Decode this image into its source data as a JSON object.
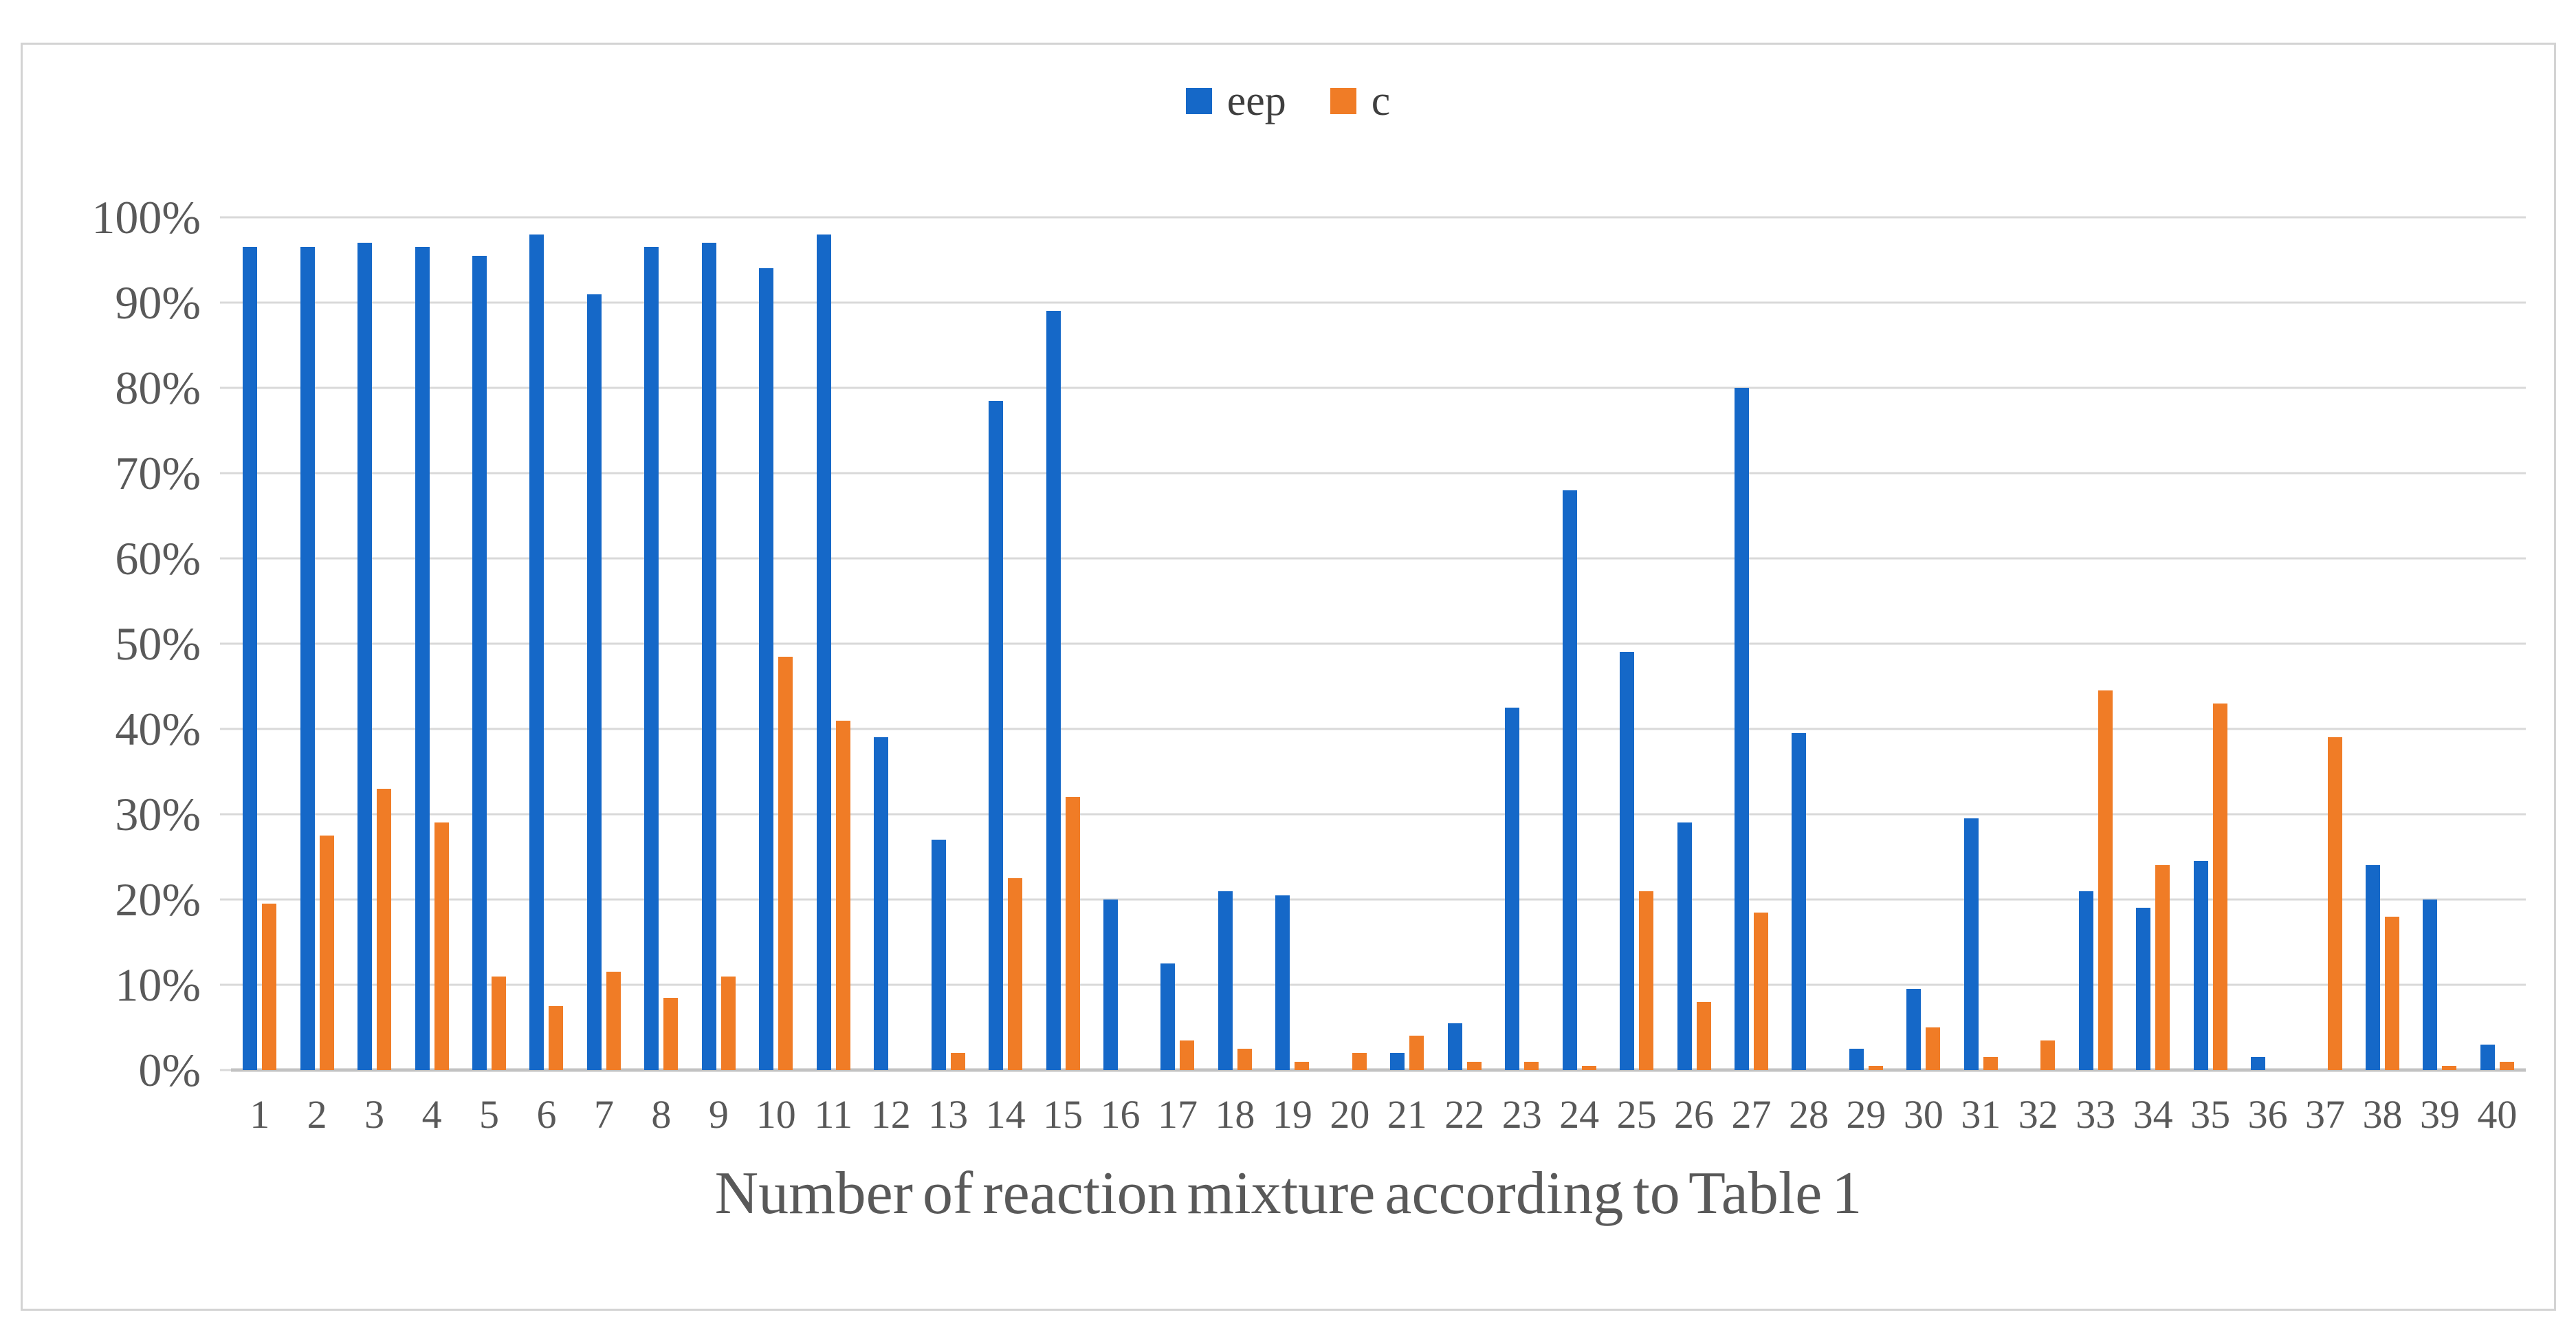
{
  "chart_data": {
    "type": "bar",
    "title": "",
    "xlabel": "Number of reaction mixture according to Table 1",
    "ylabel": "",
    "categories": [
      "1",
      "2",
      "3",
      "4",
      "5",
      "6",
      "7",
      "8",
      "9",
      "10",
      "11",
      "12",
      "13",
      "14",
      "15",
      "16",
      "17",
      "18",
      "19",
      "20",
      "21",
      "22",
      "23",
      "24",
      "25",
      "26",
      "27",
      "28",
      "29",
      "30",
      "31",
      "32",
      "33",
      "34",
      "35",
      "36",
      "37",
      "38",
      "39",
      "40"
    ],
    "series": [
      {
        "name": "eep",
        "color": "#1568c8",
        "values": [
          96.5,
          96.5,
          97,
          96.5,
          95.5,
          98,
          91,
          96.5,
          97,
          94,
          98,
          39,
          27,
          78.5,
          89,
          20,
          12.5,
          21,
          20.5,
          0,
          2,
          5.5,
          42.5,
          68,
          49,
          29,
          80,
          39.5,
          2.5,
          9.5,
          29.5,
          0,
          21,
          19,
          24.5,
          1.5,
          0,
          24,
          20,
          3
        ]
      },
      {
        "name": "c",
        "color": "#f07c26",
        "values": [
          19.5,
          27.5,
          33,
          29,
          11,
          7.5,
          11.5,
          8.5,
          11,
          48.5,
          41,
          0,
          2,
          22.5,
          32,
          0,
          3.5,
          2.5,
          1,
          2,
          4,
          1,
          1,
          0.5,
          21,
          8,
          18.5,
          0,
          0.5,
          5,
          1.5,
          3.5,
          44.5,
          24,
          43,
          0,
          39,
          18,
          0.5,
          1
        ]
      }
    ],
    "y_ticks": [
      "0%",
      "10%",
      "20%",
      "30%",
      "40%",
      "50%",
      "60%",
      "70%",
      "80%",
      "90%",
      "100%"
    ],
    "ylim": [
      0,
      100
    ],
    "y_step": 10,
    "grid": true,
    "legend_position": "top-center"
  }
}
